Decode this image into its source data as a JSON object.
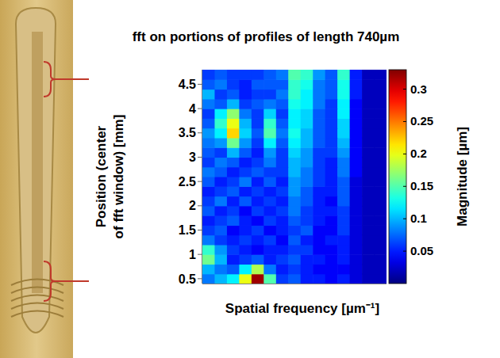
{
  "chart_data": {
    "type": "heatmap",
    "title": "fft on portions of profiles of length 740µm",
    "x_label": "Spatial frequency [µm⁻¹]",
    "y_label": "Position (center of fft window) [mm]",
    "tick_labels": "y",
    "xlim": [
      0,
      0.06
    ],
    "ylim": [
      0.4,
      4.8
    ],
    "yticks": [
      0.5,
      1,
      1.5,
      2,
      2.5,
      3,
      3.5,
      4,
      4.5
    ],
    "x": [
      0.002,
      0.006,
      0.01,
      0.014,
      0.018,
      0.022,
      0.026,
      0.03,
      0.034,
      0.038,
      0.042,
      0.046,
      0.05,
      0.054,
      0.058
    ],
    "y": [
      0.5,
      0.7,
      0.9,
      1.1,
      1.3,
      1.5,
      1.7,
      1.9,
      2.1,
      2.3,
      2.5,
      2.7,
      2.9,
      3.1,
      3.3,
      3.5,
      3.7,
      3.9,
      4.1,
      4.3,
      4.5,
      4.7
    ],
    "cells": [
      [
        0.08,
        0.1,
        0.12,
        0.2,
        0.32,
        0.15,
        0.06,
        0.07,
        0.05,
        0.05,
        0.04,
        0.05,
        0.03,
        0.02,
        0.02
      ],
      [
        0.1,
        0.08,
        0.07,
        0.12,
        0.18,
        0.08,
        0.05,
        0.06,
        0.05,
        0.04,
        0.04,
        0.04,
        0.03,
        0.02,
        0.02
      ],
      [
        0.16,
        0.1,
        0.05,
        0.06,
        0.07,
        0.05,
        0.06,
        0.07,
        0.05,
        0.05,
        0.04,
        0.05,
        0.03,
        0.02,
        0.02
      ],
      [
        0.14,
        0.09,
        0.06,
        0.05,
        0.04,
        0.05,
        0.05,
        0.06,
        0.06,
        0.04,
        0.04,
        0.05,
        0.03,
        0.02,
        0.02
      ],
      [
        0.08,
        0.06,
        0.05,
        0.06,
        0.05,
        0.06,
        0.04,
        0.07,
        0.05,
        0.04,
        0.05,
        0.05,
        0.03,
        0.02,
        0.02
      ],
      [
        0.06,
        0.07,
        0.04,
        0.05,
        0.06,
        0.04,
        0.05,
        0.06,
        0.07,
        0.04,
        0.04,
        0.06,
        0.03,
        0.02,
        0.02
      ],
      [
        0.05,
        0.06,
        0.07,
        0.05,
        0.04,
        0.06,
        0.05,
        0.07,
        0.06,
        0.05,
        0.04,
        0.06,
        0.03,
        0.02,
        0.02
      ],
      [
        0.07,
        0.05,
        0.06,
        0.04,
        0.06,
        0.05,
        0.06,
        0.08,
        0.06,
        0.05,
        0.05,
        0.06,
        0.03,
        0.02,
        0.02
      ],
      [
        0.06,
        0.08,
        0.05,
        0.07,
        0.05,
        0.06,
        0.05,
        0.08,
        0.07,
        0.05,
        0.04,
        0.07,
        0.03,
        0.02,
        0.02
      ],
      [
        0.05,
        0.06,
        0.07,
        0.05,
        0.06,
        0.05,
        0.06,
        0.09,
        0.07,
        0.05,
        0.05,
        0.07,
        0.03,
        0.02,
        0.02
      ],
      [
        0.07,
        0.05,
        0.06,
        0.08,
        0.05,
        0.07,
        0.05,
        0.09,
        0.08,
        0.06,
        0.05,
        0.07,
        0.03,
        0.02,
        0.02
      ],
      [
        0.08,
        0.07,
        0.05,
        0.06,
        0.07,
        0.06,
        0.06,
        0.1,
        0.08,
        0.06,
        0.05,
        0.08,
        0.04,
        0.02,
        0.02
      ],
      [
        0.06,
        0.08,
        0.07,
        0.05,
        0.06,
        0.08,
        0.06,
        0.1,
        0.09,
        0.06,
        0.05,
        0.08,
        0.04,
        0.02,
        0.02
      ],
      [
        0.07,
        0.06,
        0.1,
        0.07,
        0.05,
        0.09,
        0.06,
        0.11,
        0.09,
        0.06,
        0.06,
        0.09,
        0.04,
        0.02,
        0.02
      ],
      [
        0.08,
        0.09,
        0.16,
        0.09,
        0.06,
        0.12,
        0.07,
        0.12,
        0.1,
        0.07,
        0.06,
        0.1,
        0.04,
        0.02,
        0.02
      ],
      [
        0.09,
        0.12,
        0.22,
        0.11,
        0.07,
        0.15,
        0.08,
        0.13,
        0.1,
        0.07,
        0.06,
        0.11,
        0.04,
        0.02,
        0.02
      ],
      [
        0.07,
        0.14,
        0.2,
        0.1,
        0.06,
        0.14,
        0.07,
        0.12,
        0.11,
        0.07,
        0.06,
        0.11,
        0.04,
        0.02,
        0.02
      ],
      [
        0.06,
        0.12,
        0.17,
        0.08,
        0.06,
        0.11,
        0.06,
        0.12,
        0.11,
        0.07,
        0.06,
        0.12,
        0.04,
        0.02,
        0.02
      ],
      [
        0.08,
        0.07,
        0.1,
        0.06,
        0.07,
        0.08,
        0.07,
        0.13,
        0.12,
        0.08,
        0.06,
        0.12,
        0.04,
        0.02,
        0.02
      ],
      [
        0.1,
        0.06,
        0.07,
        0.05,
        0.06,
        0.06,
        0.08,
        0.14,
        0.12,
        0.08,
        0.07,
        0.13,
        0.05,
        0.02,
        0.02
      ],
      [
        0.07,
        0.08,
        0.06,
        0.05,
        0.07,
        0.07,
        0.07,
        0.14,
        0.13,
        0.08,
        0.07,
        0.13,
        0.05,
        0.02,
        0.02
      ],
      [
        0.06,
        0.07,
        0.06,
        0.06,
        0.06,
        0.07,
        0.08,
        0.15,
        0.14,
        0.09,
        0.07,
        0.14,
        0.05,
        0.02,
        0.02
      ]
    ],
    "colorbar": {
      "label": "Magnitude [µm]",
      "range": [
        0,
        0.33
      ],
      "ticks": [
        0.05,
        0.1,
        0.15,
        0.2,
        0.25,
        0.3
      ]
    }
  }
}
